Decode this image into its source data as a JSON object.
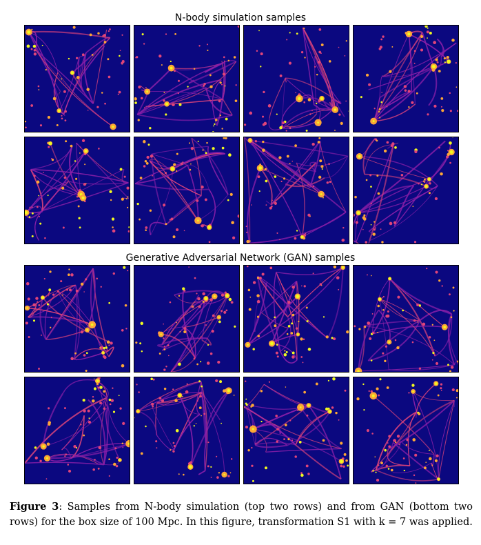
{
  "figure": {
    "sections": [
      {
        "title": "N-body simulation samples",
        "rows": 2,
        "cols": 4,
        "tiles": [
          {
            "seed": 11
          },
          {
            "seed": 23
          },
          {
            "seed": 37
          },
          {
            "seed": 41
          },
          {
            "seed": 53
          },
          {
            "seed": 67
          },
          {
            "seed": 71
          },
          {
            "seed": 89
          }
        ]
      },
      {
        "title": "Generative Adversarial Network (GAN) samples",
        "rows": 2,
        "cols": 4,
        "tiles": [
          {
            "seed": 97
          },
          {
            "seed": 103
          },
          {
            "seed": 113
          },
          {
            "seed": 127
          },
          {
            "seed": 131
          },
          {
            "seed": 139
          },
          {
            "seed": 151
          },
          {
            "seed": 163
          }
        ]
      }
    ],
    "colormap": {
      "background": "#0b0880",
      "filament": "#8b1fa8",
      "bright": "#e0447a",
      "hot": "#fca636",
      "peak": "#f0f921"
    },
    "caption": {
      "label": "Figure 3",
      "text": ": Samples from N-body simulation (top two rows) and from GAN (bottom two rows) for the box size of 100 Mpc. In this figure, transformation S1 with k = 7 was applied."
    }
  }
}
